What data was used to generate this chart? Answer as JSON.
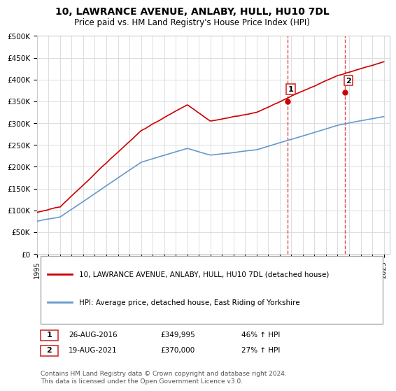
{
  "title": "10, LAWRANCE AVENUE, ANLABY, HULL, HU10 7DL",
  "subtitle": "Price paid vs. HM Land Registry's House Price Index (HPI)",
  "ylabel_ticks": [
    "£0",
    "£50K",
    "£100K",
    "£150K",
    "£200K",
    "£250K",
    "£300K",
    "£350K",
    "£400K",
    "£450K",
    "£500K"
  ],
  "ytick_values": [
    0,
    50000,
    100000,
    150000,
    200000,
    250000,
    300000,
    350000,
    400000,
    450000,
    500000
  ],
  "ylim": [
    0,
    500000
  ],
  "sale1": {
    "date_num": 2016.65,
    "price": 349995,
    "label": "1",
    "date_str": "26-AUG-2016",
    "pct": "46%↑ HPI"
  },
  "sale2": {
    "date_num": 2021.63,
    "price": 370000,
    "label": "2",
    "date_str": "19-AUG-2021",
    "pct": "27%↑ HPI"
  },
  "legend_line1": "10, LAWRANCE AVENUE, ANLABY, HULL, HU10 7DL (detached house)",
  "legend_line2": "HPI: Average price, detached house, East Riding of Yorkshire",
  "table_row1": [
    "1",
    "26-AUG-2016",
    "£349,995",
    "46% ↑ HPI"
  ],
  "table_row2": [
    "2",
    "19-AUG-2021",
    "£370,000",
    "27% ↑ HPI"
  ],
  "footer": "Contains HM Land Registry data © Crown copyright and database right 2024.\nThis data is licensed under the Open Government Licence v3.0.",
  "line_color_red": "#cc0000",
  "line_color_blue": "#6699cc",
  "dashed_color": "#cc0000",
  "background_color": "#ffffff",
  "grid_color": "#dddddd"
}
